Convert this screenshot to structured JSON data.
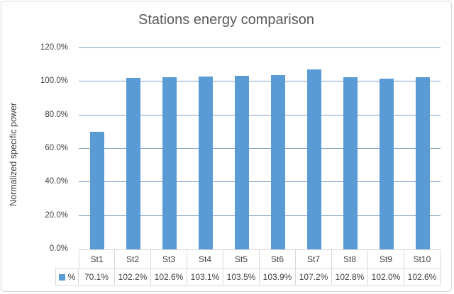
{
  "chart_data": {
    "type": "bar",
    "title": "Stations energy comparison",
    "xlabel": "",
    "ylabel": "Normalized specific power",
    "categories": [
      "St1",
      "St2",
      "St3",
      "St4",
      "St5",
      "St6",
      "St7",
      "St8",
      "St9",
      "St10"
    ],
    "series": [
      {
        "name": "%",
        "values": [
          70.1,
          102.2,
          102.6,
          103.1,
          103.5,
          103.9,
          107.2,
          102.8,
          102.0,
          102.6
        ],
        "values_display": [
          "70.1%",
          "102.2%",
          "102.6%",
          "103.1%",
          "103.5%",
          "103.9%",
          "107.2%",
          "102.8%",
          "102.0%",
          "102.6%"
        ]
      }
    ],
    "ylim": [
      0,
      120
    ],
    "y_ticks": [
      "0.0%",
      "20.0%",
      "40.0%",
      "60.0%",
      "80.0%",
      "100.0%",
      "120.0%"
    ],
    "grid": true,
    "legend_position": "data-table-left",
    "colors": {
      "bar": "#5B9BD5",
      "gridline": "#7E9FC9",
      "title_text": "#595959",
      "text": "#404040",
      "table_border": "#D9D9D9",
      "chart_border": "#D9D9D9"
    }
  }
}
